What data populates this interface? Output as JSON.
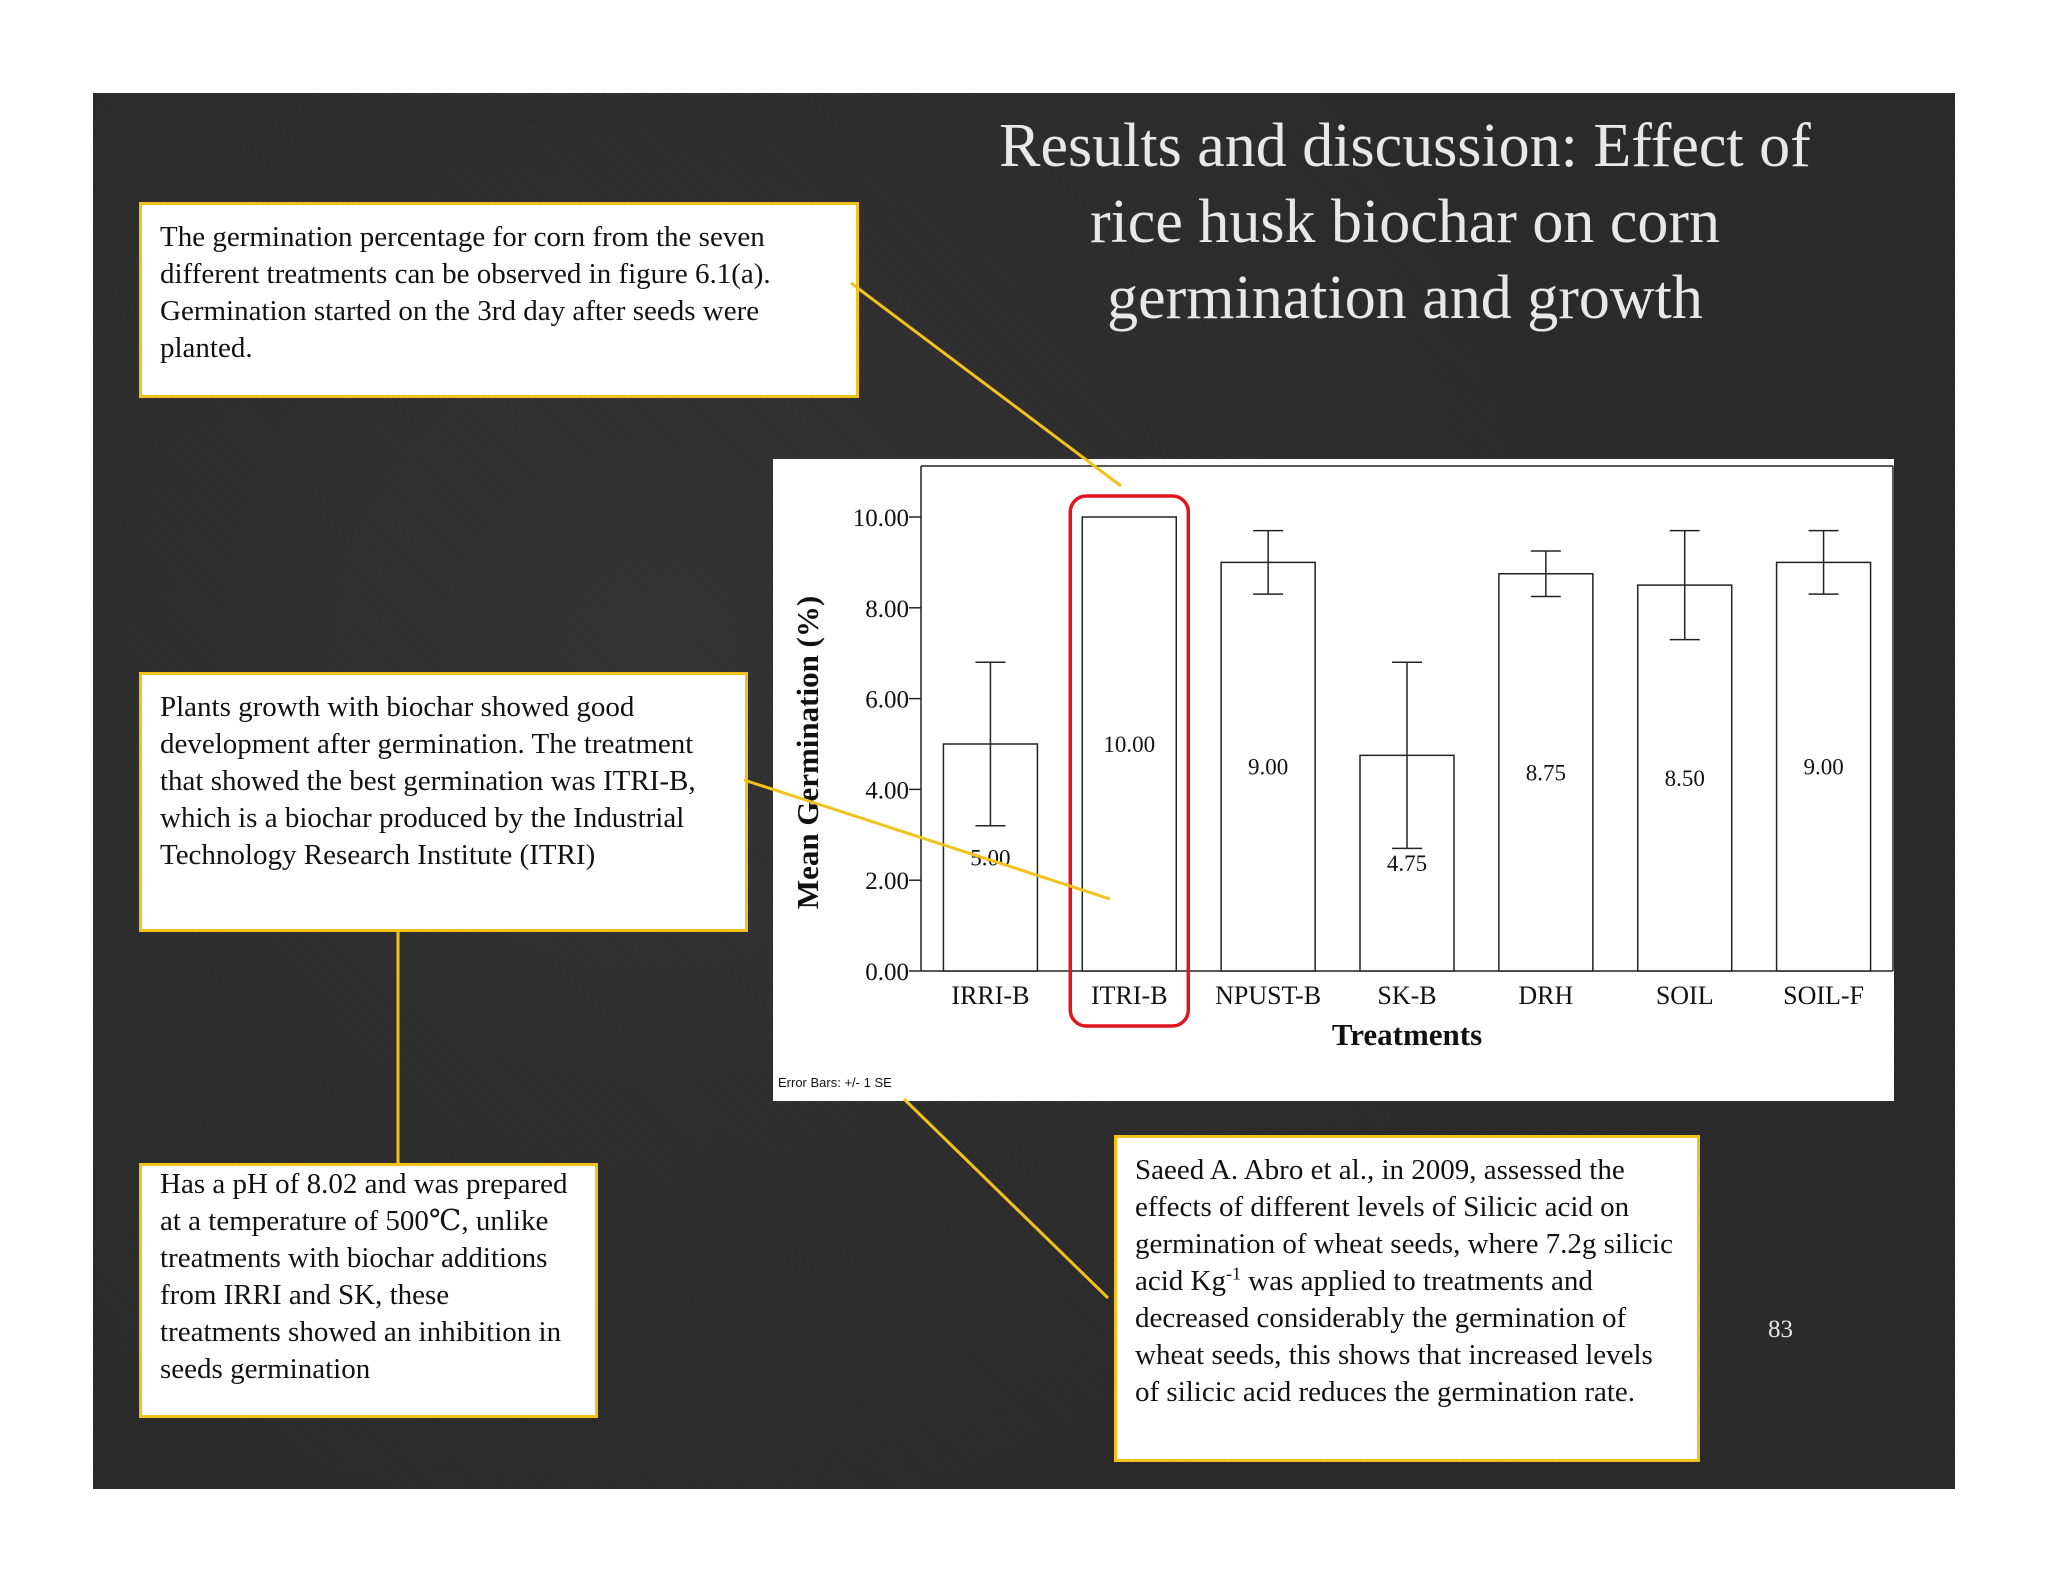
{
  "slide": {
    "title": "Results and discussion: Effect of rice husk biochar on corn germination and growth",
    "page_number": "83"
  },
  "callouts": {
    "germination_intro": "The germination percentage for corn from the seven different treatments can be observed in figure 6.1(a). Germination started on the 3rd day after seeds were planted.",
    "best_treatment": "Plants growth with biochar showed good development after germination. The treatment that showed the best germination was ITRI-B, which is a biochar produced by the Industrial Technology Research Institute (ITRI)",
    "ph_info": "Has a pH of 8.02 and was prepared at a temperature of 500℃, unlike treatments with biochar additions from IRRI and SK, these treatments showed an inhibition in seeds germination",
    "silicic_acid": {
      "before": "Saeed A. Abro et al., in 2009, assessed the effects of different levels of Silicic acid on germination of wheat seeds, where 7.2g silicic acid Kg",
      "superscript": "-1",
      "after": " was applied to treatments and decreased considerably the germination of wheat seeds, this shows that increased levels of silicic acid reduces the germination rate."
    }
  },
  "colors": {
    "callout_border": "#f2c21b",
    "connector": "#f2c21b",
    "highlight": "#e0141b"
  },
  "chart_data": {
    "type": "bar",
    "title": "",
    "xlabel": "Treatments",
    "ylabel": "Mean Germination (%)",
    "ylim": [
      0,
      10
    ],
    "yticks": [
      "0.00",
      "2.00",
      "4.00",
      "6.00",
      "8.00",
      "10.00"
    ],
    "categories": [
      "IRRI-B",
      "ITRI-B",
      "NPUST-B",
      "SK-B",
      "DRH",
      "SOIL",
      "SOIL-F"
    ],
    "values": [
      5.0,
      10.0,
      9.0,
      4.75,
      8.75,
      8.5,
      9.0
    ],
    "value_labels": [
      "5.00",
      "10.00",
      "9.00",
      "4.75",
      "8.75",
      "8.50",
      "9.00"
    ],
    "error_se": [
      1.8,
      0.0,
      0.7,
      2.05,
      0.5,
      1.2,
      0.7
    ],
    "highlighted_category": "ITRI-B",
    "note": "Error Bars: +/- 1 SE"
  }
}
